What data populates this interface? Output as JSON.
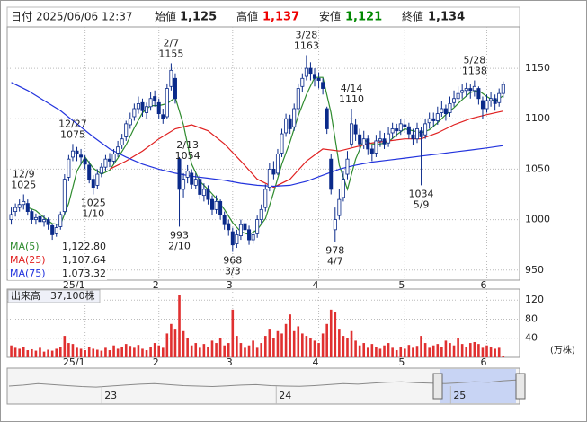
{
  "header": {
    "date_label": "日付",
    "datetime": "2025/06/06 12:37",
    "open_label": "始値",
    "open": "1,125",
    "high_label": "高値",
    "high": "1,137",
    "low_label": "安値",
    "low": "1,121",
    "close_label": "終値",
    "close": "1,134"
  },
  "chart_data": [
    {
      "type": "candlestick",
      "xlim": [
        -1,
        124
      ],
      "xticks": [
        {
          "value": 18,
          "label": "25/1"
        },
        {
          "value": 36,
          "label": "2"
        },
        {
          "value": 54,
          "label": "3"
        },
        {
          "value": 75,
          "label": "4"
        },
        {
          "value": 96,
          "label": "5"
        },
        {
          "value": 116,
          "label": "6"
        }
      ],
      "ylim": [
        940,
        1191
      ],
      "yticks": [
        950,
        1000,
        1050,
        1100,
        1150
      ],
      "grid": true,
      "up_color": "#ffffff",
      "down_color": "#0a2a8a",
      "edge_color": "#0a2a8a",
      "ohlc": [
        [
          1000,
          1012,
          995,
          1005
        ],
        [
          1008,
          1016,
          1003,
          1012
        ],
        [
          1012,
          1020,
          1008,
          1015
        ],
        [
          1015,
          1025,
          1010,
          1018
        ],
        [
          1016,
          1020,
          1004,
          1008
        ],
        [
          1008,
          1010,
          996,
          1000
        ],
        [
          1000,
          1006,
          995,
          1002
        ],
        [
          1003,
          1005,
          994,
          998
        ],
        [
          998,
          1004,
          993,
          1000
        ],
        [
          1000,
          1002,
          990,
          995
        ],
        [
          994,
          996,
          980,
          985
        ],
        [
          986,
          996,
          983,
          992
        ],
        [
          993,
          1008,
          990,
          1005
        ],
        [
          1008,
          1045,
          1005,
          1040
        ],
        [
          1042,
          1064,
          1038,
          1060
        ],
        [
          1062,
          1075,
          1058,
          1068
        ],
        [
          1068,
          1072,
          1058,
          1065
        ],
        [
          1064,
          1070,
          1055,
          1062
        ],
        [
          1060,
          1064,
          1050,
          1055
        ],
        [
          1054,
          1058,
          1036,
          1040
        ],
        [
          1040,
          1044,
          1025,
          1032
        ],
        [
          1034,
          1050,
          1030,
          1045
        ],
        [
          1046,
          1056,
          1042,
          1052
        ],
        [
          1052,
          1064,
          1048,
          1060
        ],
        [
          1060,
          1066,
          1052,
          1058
        ],
        [
          1058,
          1070,
          1055,
          1065
        ],
        [
          1066,
          1078,
          1062,
          1072
        ],
        [
          1074,
          1085,
          1070,
          1080
        ],
        [
          1082,
          1098,
          1078,
          1095
        ],
        [
          1094,
          1106,
          1090,
          1100
        ],
        [
          1102,
          1115,
          1098,
          1110
        ],
        [
          1110,
          1122,
          1105,
          1115
        ],
        [
          1116,
          1120,
          1102,
          1108
        ],
        [
          1106,
          1116,
          1100,
          1112
        ],
        [
          1112,
          1126,
          1108,
          1120
        ],
        [
          1122,
          1128,
          1112,
          1118
        ],
        [
          1116,
          1120,
          1100,
          1105
        ],
        [
          1104,
          1110,
          1095,
          1100
        ],
        [
          1102,
          1135,
          1100,
          1130
        ],
        [
          1132,
          1155,
          1128,
          1148
        ],
        [
          1140,
          1145,
          1115,
          1120
        ],
        [
          1060,
          1062,
          993,
          1030
        ],
        [
          1030,
          1046,
          1022,
          1040
        ],
        [
          1042,
          1054,
          1036,
          1048
        ],
        [
          1046,
          1050,
          1030,
          1035
        ],
        [
          1034,
          1046,
          1030,
          1040
        ],
        [
          1040,
          1044,
          1020,
          1025
        ],
        [
          1024,
          1036,
          1018,
          1030
        ],
        [
          1030,
          1034,
          1015,
          1020
        ],
        [
          1020,
          1024,
          1005,
          1010
        ],
        [
          1010,
          1024,
          1006,
          1018
        ],
        [
          1018,
          1020,
          1000,
          1005
        ],
        [
          1004,
          1008,
          990,
          995
        ],
        [
          996,
          1000,
          984,
          990
        ],
        [
          988,
          992,
          968,
          975
        ],
        [
          976,
          990,
          972,
          985
        ],
        [
          984,
          1000,
          980,
          995
        ],
        [
          996,
          1000,
          985,
          990
        ],
        [
          990,
          994,
          975,
          980
        ],
        [
          980,
          990,
          976,
          985
        ],
        [
          986,
          1004,
          982,
          1000
        ],
        [
          1000,
          1015,
          996,
          1010
        ],
        [
          1012,
          1035,
          1008,
          1030
        ],
        [
          1032,
          1056,
          1028,
          1050
        ],
        [
          1050,
          1058,
          1040,
          1045
        ],
        [
          1046,
          1070,
          1044,
          1065
        ],
        [
          1066,
          1090,
          1062,
          1085
        ],
        [
          1086,
          1105,
          1082,
          1100
        ],
        [
          1100,
          1104,
          1085,
          1090
        ],
        [
          1092,
          1115,
          1088,
          1110
        ],
        [
          1110,
          1135,
          1106,
          1130
        ],
        [
          1132,
          1145,
          1126,
          1140
        ],
        [
          1142,
          1163,
          1138,
          1150
        ],
        [
          1150,
          1156,
          1138,
          1145
        ],
        [
          1144,
          1150,
          1132,
          1140
        ],
        [
          1140,
          1146,
          1130,
          1138
        ],
        [
          1136,
          1140,
          1124,
          1130
        ],
        [
          1110,
          1112,
          1085,
          1090
        ],
        [
          1060,
          1065,
          1025,
          1030
        ],
        [
          990,
          1012,
          978,
          1000
        ],
        [
          1004,
          1030,
          1000,
          1020
        ],
        [
          1022,
          1048,
          1018,
          1040
        ],
        [
          1045,
          1068,
          1040,
          1060
        ],
        [
          1075,
          1110,
          1072,
          1095
        ],
        [
          1094,
          1100,
          1078,
          1085
        ],
        [
          1084,
          1090,
          1068,
          1075
        ],
        [
          1074,
          1088,
          1070,
          1080
        ],
        [
          1080,
          1084,
          1064,
          1070
        ],
        [
          1070,
          1074,
          1058,
          1065
        ],
        [
          1066,
          1084,
          1062,
          1078
        ],
        [
          1078,
          1088,
          1072,
          1080
        ],
        [
          1080,
          1086,
          1070,
          1075
        ],
        [
          1076,
          1092,
          1072,
          1085
        ],
        [
          1086,
          1096,
          1080,
          1090
        ],
        [
          1090,
          1095,
          1082,
          1088
        ],
        [
          1088,
          1100,
          1084,
          1095
        ],
        [
          1094,
          1100,
          1086,
          1092
        ],
        [
          1092,
          1096,
          1080,
          1085
        ],
        [
          1084,
          1090,
          1074,
          1080
        ],
        [
          1080,
          1096,
          1076,
          1090
        ],
        [
          1088,
          1092,
          1034,
          1082
        ],
        [
          1084,
          1100,
          1080,
          1095
        ],
        [
          1096,
          1106,
          1090,
          1100
        ],
        [
          1100,
          1106,
          1092,
          1098
        ],
        [
          1098,
          1112,
          1094,
          1105
        ],
        [
          1106,
          1118,
          1102,
          1110
        ],
        [
          1110,
          1114,
          1098,
          1105
        ],
        [
          1106,
          1122,
          1102,
          1115
        ],
        [
          1116,
          1128,
          1112,
          1120
        ],
        [
          1120,
          1132,
          1116,
          1125
        ],
        [
          1126,
          1134,
          1120,
          1128
        ],
        [
          1128,
          1136,
          1122,
          1130
        ],
        [
          1130,
          1134,
          1120,
          1128
        ],
        [
          1128,
          1138,
          1122,
          1132
        ],
        [
          1130,
          1132,
          1114,
          1120
        ],
        [
          1118,
          1122,
          1100,
          1110
        ],
        [
          1110,
          1124,
          1106,
          1118
        ],
        [
          1118,
          1126,
          1112,
          1120
        ],
        [
          1120,
          1124,
          1108,
          1115
        ],
        [
          1116,
          1130,
          1112,
          1125
        ],
        [
          1125,
          1137,
          1121,
          1134
        ]
      ],
      "annotations": [
        {
          "date": "12/9",
          "price": 1025
        },
        {
          "date": "12/27",
          "price": 1075
        },
        {
          "date": "1/10",
          "price": 1025
        },
        {
          "date": "2/7",
          "price": 1155
        },
        {
          "date": "2/10",
          "price": 993
        },
        {
          "date": "2/13",
          "price": 1054
        },
        {
          "date": "3/3",
          "price": 968
        },
        {
          "date": "3/28",
          "price": 1163
        },
        {
          "date": "4/7",
          "price": 978
        },
        {
          "date": "4/14",
          "price": 1110
        },
        {
          "date": "5/9",
          "price": 1034
        },
        {
          "date": "5/28",
          "price": 1138
        }
      ],
      "series": [
        {
          "name": "MA(5)",
          "color": "#2e8b2e",
          "value_label": "1,122.80",
          "x": [
            4,
            6,
            8,
            10,
            12,
            14,
            16,
            18,
            20,
            22,
            24,
            26,
            28,
            30,
            32,
            34,
            36,
            38,
            40,
            42,
            44,
            46,
            48,
            50,
            52,
            54,
            56,
            58,
            60,
            62,
            64,
            66,
            68,
            70,
            72,
            74,
            76,
            78,
            80,
            82,
            84,
            86,
            88,
            90,
            92,
            94,
            96,
            98,
            100,
            102,
            104,
            106,
            108,
            110,
            112,
            114,
            116,
            118,
            120
          ],
          "values": [
            1012,
            1009,
            1002,
            996,
            995,
            1016,
            1048,
            1062,
            1051,
            1045,
            1049,
            1061,
            1074,
            1091,
            1106,
            1113,
            1113,
            1115,
            1121,
            1094,
            1055,
            1038,
            1030,
            1021,
            1010,
            997,
            988,
            985,
            990,
            1001,
            1027,
            1055,
            1077,
            1103,
            1124,
            1141,
            1141,
            1106,
            1054,
            1030,
            1060,
            1079,
            1075,
            1075,
            1077,
            1084,
            1090,
            1088,
            1086,
            1089,
            1096,
            1104,
            1111,
            1119,
            1126,
            1128,
            1122,
            1117,
            1122.8
          ]
        },
        {
          "name": "MA(25)",
          "color": "#e02020",
          "value_label": "1,107.64",
          "x": [
            24,
            28,
            32,
            36,
            40,
            44,
            48,
            52,
            56,
            60,
            64,
            68,
            72,
            76,
            80,
            84,
            88,
            92,
            96,
            100,
            104,
            108,
            112,
            116,
            120
          ],
          "values": [
            1050,
            1058,
            1068,
            1080,
            1090,
            1094,
            1088,
            1075,
            1058,
            1040,
            1032,
            1040,
            1058,
            1070,
            1068,
            1072,
            1076,
            1078,
            1080,
            1080,
            1086,
            1094,
            1100,
            1104,
            1107.64
          ]
        },
        {
          "name": "MA(75)",
          "color": "#2233dd",
          "value_label": "1,073.32",
          "x": [
            0,
            4,
            8,
            12,
            16,
            20,
            24,
            28,
            32,
            36,
            40,
            44,
            48,
            52,
            56,
            60,
            64,
            68,
            72,
            76,
            80,
            84,
            88,
            92,
            96,
            100,
            104,
            108,
            112,
            116,
            120
          ],
          "values": [
            1136,
            1128,
            1118,
            1108,
            1095,
            1082,
            1070,
            1062,
            1055,
            1050,
            1046,
            1043,
            1041,
            1039,
            1036,
            1034,
            1033,
            1034,
            1038,
            1044,
            1050,
            1054,
            1057,
            1059,
            1061,
            1063,
            1065,
            1067,
            1069,
            1071,
            1073.32
          ]
        }
      ]
    },
    {
      "type": "bar",
      "title": "出来高",
      "value_text": "37,100株",
      "unit": "(万株)",
      "xlim": [
        -1,
        124
      ],
      "xticks": [
        {
          "value": 18,
          "label": "25/1"
        },
        {
          "value": 36,
          "label": "2"
        },
        {
          "value": 54,
          "label": "3"
        },
        {
          "value": 75,
          "label": "4"
        },
        {
          "value": 96,
          "label": "5"
        },
        {
          "value": 116,
          "label": "6"
        }
      ],
      "ylim": [
        0,
        143
      ],
      "yticks": [
        40,
        80,
        120
      ],
      "grid": true,
      "color": "#e03030",
      "values": [
        25,
        20,
        18,
        22,
        15,
        17,
        14,
        20,
        12,
        16,
        14,
        18,
        22,
        45,
        30,
        28,
        20,
        18,
        15,
        22,
        18,
        16,
        14,
        20,
        15,
        25,
        18,
        22,
        28,
        24,
        20,
        26,
        18,
        15,
        22,
        30,
        25,
        20,
        50,
        70,
        60,
        130,
        55,
        40,
        25,
        30,
        20,
        28,
        22,
        35,
        30,
        40,
        25,
        30,
        100,
        45,
        30,
        20,
        25,
        35,
        20,
        30,
        45,
        60,
        40,
        55,
        50,
        70,
        90,
        55,
        65,
        50,
        45,
        40,
        35,
        30,
        50,
        70,
        100,
        95,
        60,
        45,
        40,
        55,
        35,
        25,
        30,
        20,
        28,
        22,
        18,
        25,
        30,
        20,
        15,
        22,
        18,
        26,
        20,
        24,
        45,
        30,
        20,
        25,
        28,
        22,
        35,
        30,
        25,
        40,
        28,
        22,
        30,
        32,
        28,
        20,
        25,
        22,
        18,
        20,
        3.71
      ]
    },
    {
      "type": "line",
      "xlim": [
        0,
        35
      ],
      "ylim": [
        700,
        1300
      ],
      "color": "#8a8a8a",
      "xticks": [
        {
          "value": 7,
          "label": "23"
        },
        {
          "value": 19,
          "label": "24"
        },
        {
          "value": 31,
          "label": "25"
        }
      ],
      "values": [
        1000,
        1020,
        1050,
        1030,
        1010,
        990,
        980,
        1000,
        1020,
        1040,
        1050,
        1030,
        1010,
        1000,
        990,
        1005,
        1020,
        1030,
        1010,
        1000,
        995,
        1010,
        1030,
        1050,
        1040,
        1060,
        1080,
        1090,
        1070,
        1060,
        1050,
        1070,
        1090,
        1080,
        1110,
        1130
      ]
    }
  ]
}
